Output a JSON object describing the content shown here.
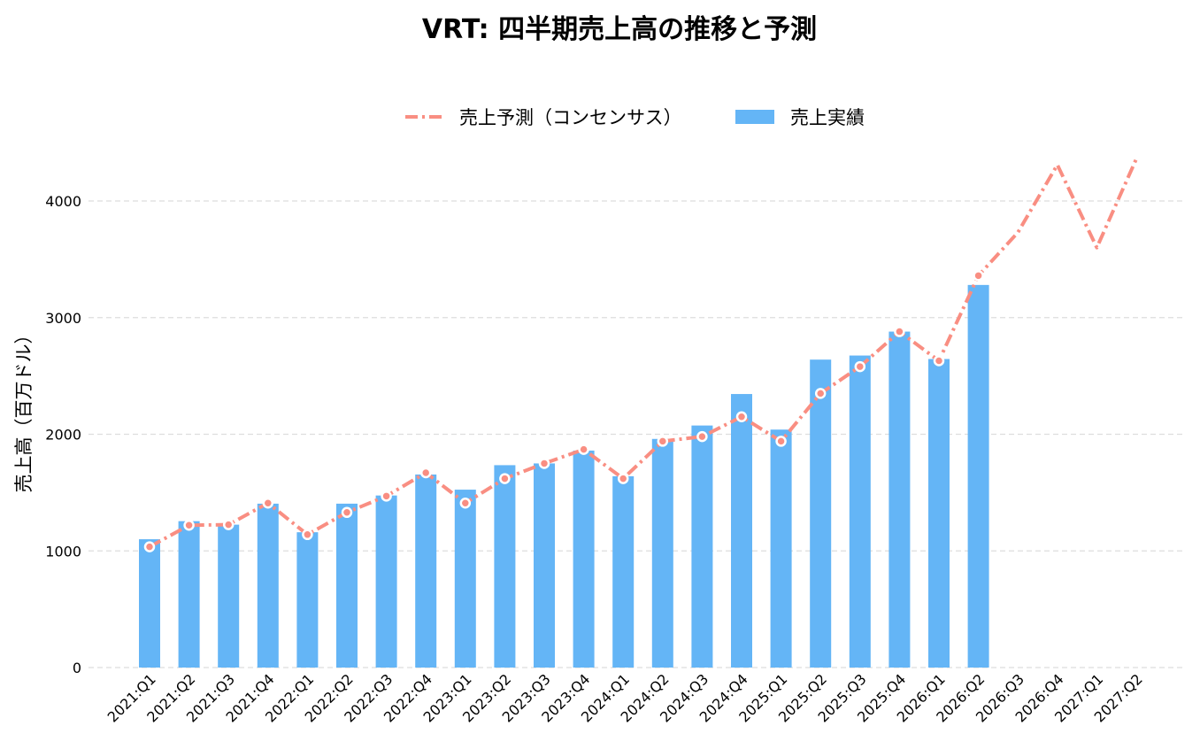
{
  "chart_data": {
    "type": "bar",
    "title": "VRT: 四半期売上高の推移と予測",
    "xlabel": "",
    "ylabel": "売上高（百万ドル）",
    "ylim": [
      0,
      4500
    ],
    "yticks": [
      "0",
      "1000",
      "2000",
      "3000",
      "4000"
    ],
    "grid": "horizontal-dashed",
    "legend_placement": "top-center",
    "categories": [
      "2021:Q1",
      "2021:Q2",
      "2021:Q3",
      "2021:Q4",
      "2022:Q1",
      "2022:Q2",
      "2022:Q3",
      "2022:Q4",
      "2023:Q1",
      "2023:Q2",
      "2023:Q3",
      "2023:Q4",
      "2024:Q1",
      "2024:Q2",
      "2024:Q3",
      "2024:Q4",
      "2025:Q1",
      "2025:Q2",
      "2025:Q3",
      "2025:Q4",
      "2026:Q1",
      "2026:Q2",
      "2026:Q3",
      "2026:Q4",
      "2027:Q1",
      "2027:Q2"
    ],
    "series": [
      {
        "name": "売上予測（コンセンサス）",
        "type": "line",
        "color": "#f98e82",
        "values": [
          1035,
          1220,
          1225,
          1410,
          1140,
          1330,
          1470,
          1670,
          1410,
          1620,
          1750,
          1870,
          1620,
          1940,
          1980,
          2150,
          1940,
          2350,
          2580,
          2880,
          2630,
          3360,
          3730,
          4310,
          3600,
          4360
        ]
      },
      {
        "name": "売上実績",
        "type": "bar",
        "color": "#64b5f6",
        "values": [
          1100,
          1255,
          1225,
          1405,
          1160,
          1405,
          1475,
          1655,
          1525,
          1735,
          1750,
          1860,
          1640,
          1960,
          2075,
          2345,
          2040,
          2640,
          2675,
          2880,
          2645,
          3280,
          null,
          null,
          null,
          null
        ]
      }
    ]
  }
}
